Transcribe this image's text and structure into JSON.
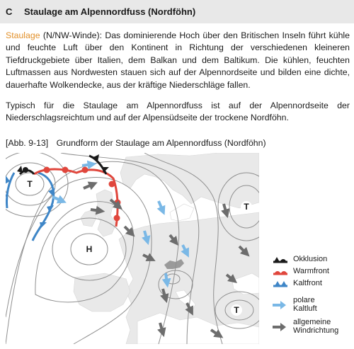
{
  "header": {
    "letter": "C",
    "title": "Staulage am Alpennordfuss (Nordföhn)"
  },
  "paragraph1": {
    "keyword": "Staulage",
    "text": " (N/NW-Winde): Das dominierende Hoch über den Britischen Inseln führt kühle und feuchte Luft über den Kontinent in Richtung der verschiedenen kleineren Tiefdruckgebiete über Italien, dem Balkan und dem Baltikum. Die kühlen, feuchten Luftmassen aus Nordwesten stauen sich auf der Alpennordseite und bilden eine dichte, dauerhafte Wolkendecke, aus der kräftige Niederschläge fallen."
  },
  "paragraph2": "Typisch für die Staulage am Alpennordfuss ist auf der Alpennordseite der Niederschlagsreichtum und auf der Alpensüdseite der trockene Nordföhn.",
  "caption": {
    "number": "[Abb. 9-13]",
    "text": "Grundform der Staulage am Alpennordfuss (Nordföhn)"
  },
  "map": {
    "pressure_labels": {
      "low_nw": "T",
      "low_ne": "T",
      "low_se": "T",
      "high": "H"
    }
  },
  "legend": {
    "occlusion": "Okklusion",
    "warm_front": "Warmfront",
    "cold_front": "Kaltfront",
    "polar_air_line1": "polare",
    "polar_air_line2": "Kaltluft",
    "wind_line1": "allgemeine",
    "wind_line2": "Windrichtung"
  },
  "colors": {
    "keyword": "#e2902a",
    "warm_front": "#e0463c",
    "cold_front": "#3f86c7",
    "occlusion": "#1a1a1a",
    "polar_air": "#7ab8e6",
    "wind": "#6d6d6d"
  }
}
